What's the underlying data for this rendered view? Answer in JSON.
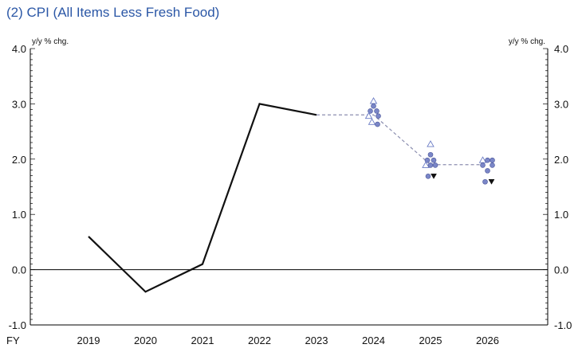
{
  "chart_data": {
    "type": "line",
    "title": "(2) CPI (All Items Less Fresh Food)",
    "ylabel_left": "y/y % chg.",
    "ylabel_right": "y/y % chg.",
    "xlabel": "FY",
    "ylim": [
      -1.0,
      4.0
    ],
    "yticks": [
      "4.0",
      "3.0",
      "2.0",
      "1.0",
      "0.0",
      "-1.0"
    ],
    "categories": [
      "2019",
      "2020",
      "2021",
      "2022",
      "2023",
      "2024",
      "2025",
      "2026"
    ],
    "series": [
      {
        "style": "solid",
        "color": "#111111",
        "points": [
          {
            "x": "2019",
            "y": 0.6
          },
          {
            "x": "2020",
            "y": -0.4
          },
          {
            "x": "2021",
            "y": 0.1
          },
          {
            "x": "2022",
            "y": 3.0
          },
          {
            "x": "2023",
            "y": 2.8
          }
        ]
      },
      {
        "style": "dashed",
        "color": "#8c8fb0",
        "points": [
          {
            "x": "2023",
            "y": 2.8
          },
          {
            "x": "2024",
            "y": 2.8
          },
          {
            "x": "2025",
            "y": 1.9
          },
          {
            "x": "2026",
            "y": 1.9
          }
        ]
      }
    ],
    "markers": [
      {
        "x": "2024",
        "dx": 0,
        "y": 3.05,
        "type": "up-triangle"
      },
      {
        "x": "2024",
        "dx": 0,
        "y": 2.96,
        "type": "circle"
      },
      {
        "x": "2024",
        "dx": -4,
        "y": 2.87,
        "type": "circle"
      },
      {
        "x": "2024",
        "dx": 4,
        "y": 2.87,
        "type": "circle"
      },
      {
        "x": "2024",
        "dx": -6,
        "y": 2.78,
        "type": "up-triangle"
      },
      {
        "x": "2024",
        "dx": 6,
        "y": 2.78,
        "type": "circle"
      },
      {
        "x": "2024",
        "dx": -2,
        "y": 2.67,
        "type": "up-triangle"
      },
      {
        "x": "2024",
        "dx": 5,
        "y": 2.63,
        "type": "circle"
      },
      {
        "x": "2025",
        "dx": 0,
        "y": 2.27,
        "type": "up-triangle"
      },
      {
        "x": "2025",
        "dx": 0,
        "y": 2.08,
        "type": "circle"
      },
      {
        "x": "2025",
        "dx": -4,
        "y": 1.98,
        "type": "circle"
      },
      {
        "x": "2025",
        "dx": 4,
        "y": 1.98,
        "type": "circle"
      },
      {
        "x": "2025",
        "dx": -6,
        "y": 1.89,
        "type": "up-triangle"
      },
      {
        "x": "2025",
        "dx": 0,
        "y": 1.89,
        "type": "circle"
      },
      {
        "x": "2025",
        "dx": 6,
        "y": 1.89,
        "type": "circle"
      },
      {
        "x": "2025",
        "dx": -3,
        "y": 1.69,
        "type": "circle"
      },
      {
        "x": "2025",
        "dx": 4,
        "y": 1.69,
        "type": "down-triangle-filled"
      },
      {
        "x": "2026",
        "dx": -6,
        "y": 1.98,
        "type": "up-triangle"
      },
      {
        "x": "2026",
        "dx": 0,
        "y": 1.98,
        "type": "circle"
      },
      {
        "x": "2026",
        "dx": 6,
        "y": 1.98,
        "type": "circle"
      },
      {
        "x": "2026",
        "dx": -6,
        "y": 1.89,
        "type": "circle"
      },
      {
        "x": "2026",
        "dx": 6,
        "y": 1.89,
        "type": "circle"
      },
      {
        "x": "2026",
        "dx": 0,
        "y": 1.79,
        "type": "circle"
      },
      {
        "x": "2026",
        "dx": -3,
        "y": 1.59,
        "type": "circle"
      },
      {
        "x": "2026",
        "dx": 5,
        "y": 1.59,
        "type": "down-triangle-filled"
      }
    ],
    "colors": {
      "title": "#2b57a6",
      "marker_fill": "#7a86c7",
      "marker_stroke": "#4a5599",
      "triangle_stroke": "#6a7bc4",
      "down_triangle_fill": "#111111"
    },
    "grid": false
  }
}
